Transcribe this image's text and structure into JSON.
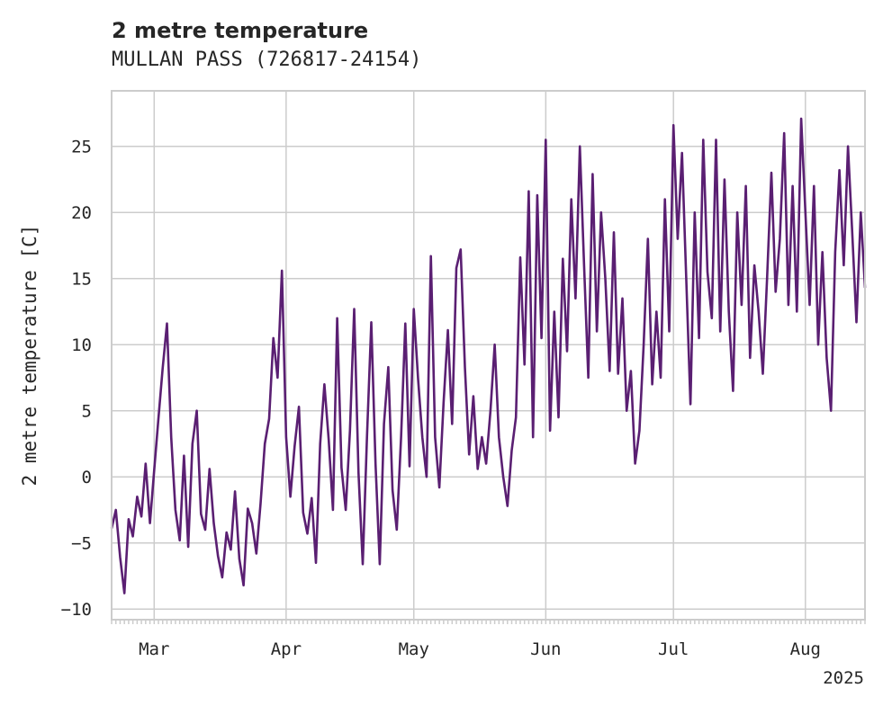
{
  "chart_data": {
    "type": "line",
    "title": "2 metre temperature",
    "subtitle": "MULLAN PASS (726817-24154)",
    "ylabel": "2 metre temperature [C]",
    "xlabel": "",
    "year_label": "2025",
    "x_range": [
      "2025-02-19",
      "2025-08-15"
    ],
    "ylim": [
      -10.8,
      29.2
    ],
    "yticks": [
      -10,
      -5,
      0,
      5,
      10,
      15,
      20,
      25
    ],
    "xticks": [
      {
        "date": "2025-03-01",
        "label": "Mar"
      },
      {
        "date": "2025-04-01",
        "label": "Apr"
      },
      {
        "date": "2025-05-01",
        "label": "May"
      },
      {
        "date": "2025-06-01",
        "label": "Jun"
      },
      {
        "date": "2025-07-01",
        "label": "Jul"
      },
      {
        "date": "2025-08-01",
        "label": "Aug"
      }
    ],
    "grid": true,
    "line_color": "#5a1f72",
    "series": [
      {
        "name": "",
        "points": [
          [
            "2025-02-19",
            -3.9
          ],
          [
            "2025-02-20",
            -2.5
          ],
          [
            "2025-02-21",
            -6.1
          ],
          [
            "2025-02-22",
            -8.8
          ],
          [
            "2025-02-23",
            -3.2
          ],
          [
            "2025-02-24",
            -4.5
          ],
          [
            "2025-02-25",
            -1.5
          ],
          [
            "2025-02-26",
            -3.0
          ],
          [
            "2025-02-27",
            1.0
          ],
          [
            "2025-02-28",
            -3.5
          ],
          [
            "2025-03-01",
            0.5
          ],
          [
            "2025-03-02",
            4.4
          ],
          [
            "2025-03-03",
            8.2
          ],
          [
            "2025-03-04",
            11.6
          ],
          [
            "2025-03-05",
            3.0
          ],
          [
            "2025-03-06",
            -2.5
          ],
          [
            "2025-03-07",
            -4.8
          ],
          [
            "2025-03-08",
            1.6
          ],
          [
            "2025-03-09",
            -5.3
          ],
          [
            "2025-03-10",
            2.5
          ],
          [
            "2025-03-11",
            5.0
          ],
          [
            "2025-03-12",
            -2.8
          ],
          [
            "2025-03-13",
            -4.0
          ],
          [
            "2025-03-14",
            0.6
          ],
          [
            "2025-03-15",
            -3.5
          ],
          [
            "2025-03-16",
            -6.0
          ],
          [
            "2025-03-17",
            -7.6
          ],
          [
            "2025-03-18",
            -4.2
          ],
          [
            "2025-03-19",
            -5.5
          ],
          [
            "2025-03-20",
            -1.1
          ],
          [
            "2025-03-21",
            -6.2
          ],
          [
            "2025-03-22",
            -8.2
          ],
          [
            "2025-03-23",
            -2.4
          ],
          [
            "2025-03-24",
            -3.5
          ],
          [
            "2025-03-25",
            -5.8
          ],
          [
            "2025-03-26",
            -2.0
          ],
          [
            "2025-03-27",
            2.5
          ],
          [
            "2025-03-28",
            4.4
          ],
          [
            "2025-03-29",
            10.5
          ],
          [
            "2025-03-30",
            7.5
          ],
          [
            "2025-03-31",
            15.6
          ],
          [
            "2025-04-01",
            3.0
          ],
          [
            "2025-04-02",
            -1.5
          ],
          [
            "2025-04-03",
            2.3
          ],
          [
            "2025-04-04",
            5.3
          ],
          [
            "2025-04-05",
            -2.7
          ],
          [
            "2025-04-06",
            -4.3
          ],
          [
            "2025-04-07",
            -1.6
          ],
          [
            "2025-04-08",
            -6.5
          ],
          [
            "2025-04-09",
            2.5
          ],
          [
            "2025-04-10",
            7.0
          ],
          [
            "2025-04-11",
            2.8
          ],
          [
            "2025-04-12",
            -2.5
          ],
          [
            "2025-04-13",
            12.0
          ],
          [
            "2025-04-14",
            0.7
          ],
          [
            "2025-04-15",
            -2.5
          ],
          [
            "2025-04-16",
            3.5
          ],
          [
            "2025-04-17",
            12.7
          ],
          [
            "2025-04-18",
            0.3
          ],
          [
            "2025-04-19",
            -6.6
          ],
          [
            "2025-04-20",
            3.0
          ],
          [
            "2025-04-21",
            11.7
          ],
          [
            "2025-04-22",
            1.0
          ],
          [
            "2025-04-23",
            -6.6
          ],
          [
            "2025-04-24",
            4.0
          ],
          [
            "2025-04-25",
            8.3
          ],
          [
            "2025-04-26",
            -1.0
          ],
          [
            "2025-04-27",
            -4.0
          ],
          [
            "2025-04-28",
            3.0
          ],
          [
            "2025-04-29",
            11.6
          ],
          [
            "2025-04-30",
            0.8
          ],
          [
            "2025-05-01",
            12.7
          ],
          [
            "2025-05-02",
            7.4
          ],
          [
            "2025-05-03",
            3.0
          ],
          [
            "2025-05-04",
            0.0
          ],
          [
            "2025-05-05",
            16.7
          ],
          [
            "2025-05-06",
            3.0
          ],
          [
            "2025-05-07",
            -0.8
          ],
          [
            "2025-05-08",
            5.6
          ],
          [
            "2025-05-09",
            11.1
          ],
          [
            "2025-05-10",
            4.0
          ],
          [
            "2025-05-11",
            15.8
          ],
          [
            "2025-05-12",
            17.2
          ],
          [
            "2025-05-13",
            8.3
          ],
          [
            "2025-05-14",
            1.7
          ],
          [
            "2025-05-15",
            6.1
          ],
          [
            "2025-05-16",
            0.6
          ],
          [
            "2025-05-17",
            3.0
          ],
          [
            "2025-05-18",
            1.0
          ],
          [
            "2025-05-19",
            5.0
          ],
          [
            "2025-05-20",
            10.0
          ],
          [
            "2025-05-21",
            3.0
          ],
          [
            "2025-05-22",
            0.0
          ],
          [
            "2025-05-23",
            -2.2
          ],
          [
            "2025-05-24",
            2.0
          ],
          [
            "2025-05-25",
            4.5
          ],
          [
            "2025-05-26",
            16.6
          ],
          [
            "2025-05-27",
            8.5
          ],
          [
            "2025-05-28",
            21.6
          ],
          [
            "2025-05-29",
            3.0
          ],
          [
            "2025-05-30",
            21.3
          ],
          [
            "2025-05-31",
            10.5
          ],
          [
            "2025-06-01",
            25.5
          ],
          [
            "2025-06-02",
            3.5
          ],
          [
            "2025-06-03",
            12.5
          ],
          [
            "2025-06-04",
            4.5
          ],
          [
            "2025-06-05",
            16.5
          ],
          [
            "2025-06-06",
            9.5
          ],
          [
            "2025-06-07",
            21.0
          ],
          [
            "2025-06-08",
            13.5
          ],
          [
            "2025-06-09",
            25.0
          ],
          [
            "2025-06-10",
            16.0
          ],
          [
            "2025-06-11",
            7.5
          ],
          [
            "2025-06-12",
            22.9
          ],
          [
            "2025-06-13",
            11.0
          ],
          [
            "2025-06-14",
            20.0
          ],
          [
            "2025-06-15",
            15.0
          ],
          [
            "2025-06-16",
            8.0
          ],
          [
            "2025-06-17",
            18.5
          ],
          [
            "2025-06-18",
            7.8
          ],
          [
            "2025-06-19",
            13.5
          ],
          [
            "2025-06-20",
            5.0
          ],
          [
            "2025-06-21",
            8.0
          ],
          [
            "2025-06-22",
            1.0
          ],
          [
            "2025-06-23",
            3.5
          ],
          [
            "2025-06-24",
            10.0
          ],
          [
            "2025-06-25",
            18.0
          ],
          [
            "2025-06-26",
            7.0
          ],
          [
            "2025-06-27",
            12.5
          ],
          [
            "2025-06-28",
            7.5
          ],
          [
            "2025-06-29",
            21.0
          ],
          [
            "2025-06-30",
            11.0
          ],
          [
            "2025-07-01",
            26.6
          ],
          [
            "2025-07-02",
            18.0
          ],
          [
            "2025-07-03",
            24.5
          ],
          [
            "2025-07-04",
            15.0
          ],
          [
            "2025-07-05",
            5.5
          ],
          [
            "2025-07-06",
            20.0
          ],
          [
            "2025-07-07",
            10.5
          ],
          [
            "2025-07-08",
            25.5
          ],
          [
            "2025-07-09",
            15.5
          ],
          [
            "2025-07-10",
            12.0
          ],
          [
            "2025-07-11",
            25.5
          ],
          [
            "2025-07-12",
            11.0
          ],
          [
            "2025-07-13",
            22.5
          ],
          [
            "2025-07-14",
            12.5
          ],
          [
            "2025-07-15",
            6.5
          ],
          [
            "2025-07-16",
            20.0
          ],
          [
            "2025-07-17",
            13.0
          ],
          [
            "2025-07-18",
            22.0
          ],
          [
            "2025-07-19",
            9.0
          ],
          [
            "2025-07-20",
            16.0
          ],
          [
            "2025-07-21",
            12.5
          ],
          [
            "2025-07-22",
            7.8
          ],
          [
            "2025-07-23",
            15.0
          ],
          [
            "2025-07-24",
            23.0
          ],
          [
            "2025-07-25",
            14.0
          ],
          [
            "2025-07-26",
            18.0
          ],
          [
            "2025-07-27",
            26.0
          ],
          [
            "2025-07-28",
            13.0
          ],
          [
            "2025-07-29",
            22.0
          ],
          [
            "2025-07-30",
            12.5
          ],
          [
            "2025-07-31",
            27.1
          ],
          [
            "2025-08-01",
            20.0
          ],
          [
            "2025-08-02",
            13.0
          ],
          [
            "2025-08-03",
            22.0
          ],
          [
            "2025-08-04",
            10.0
          ],
          [
            "2025-08-05",
            17.0
          ],
          [
            "2025-08-06",
            9.0
          ],
          [
            "2025-08-07",
            5.0
          ],
          [
            "2025-08-08",
            17.0
          ],
          [
            "2025-08-09",
            23.2
          ],
          [
            "2025-08-10",
            16.0
          ],
          [
            "2025-08-11",
            25.0
          ],
          [
            "2025-08-12",
            18.5
          ],
          [
            "2025-08-13",
            11.7
          ],
          [
            "2025-08-14",
            20.0
          ],
          [
            "2025-08-15",
            14.3
          ]
        ]
      }
    ]
  }
}
